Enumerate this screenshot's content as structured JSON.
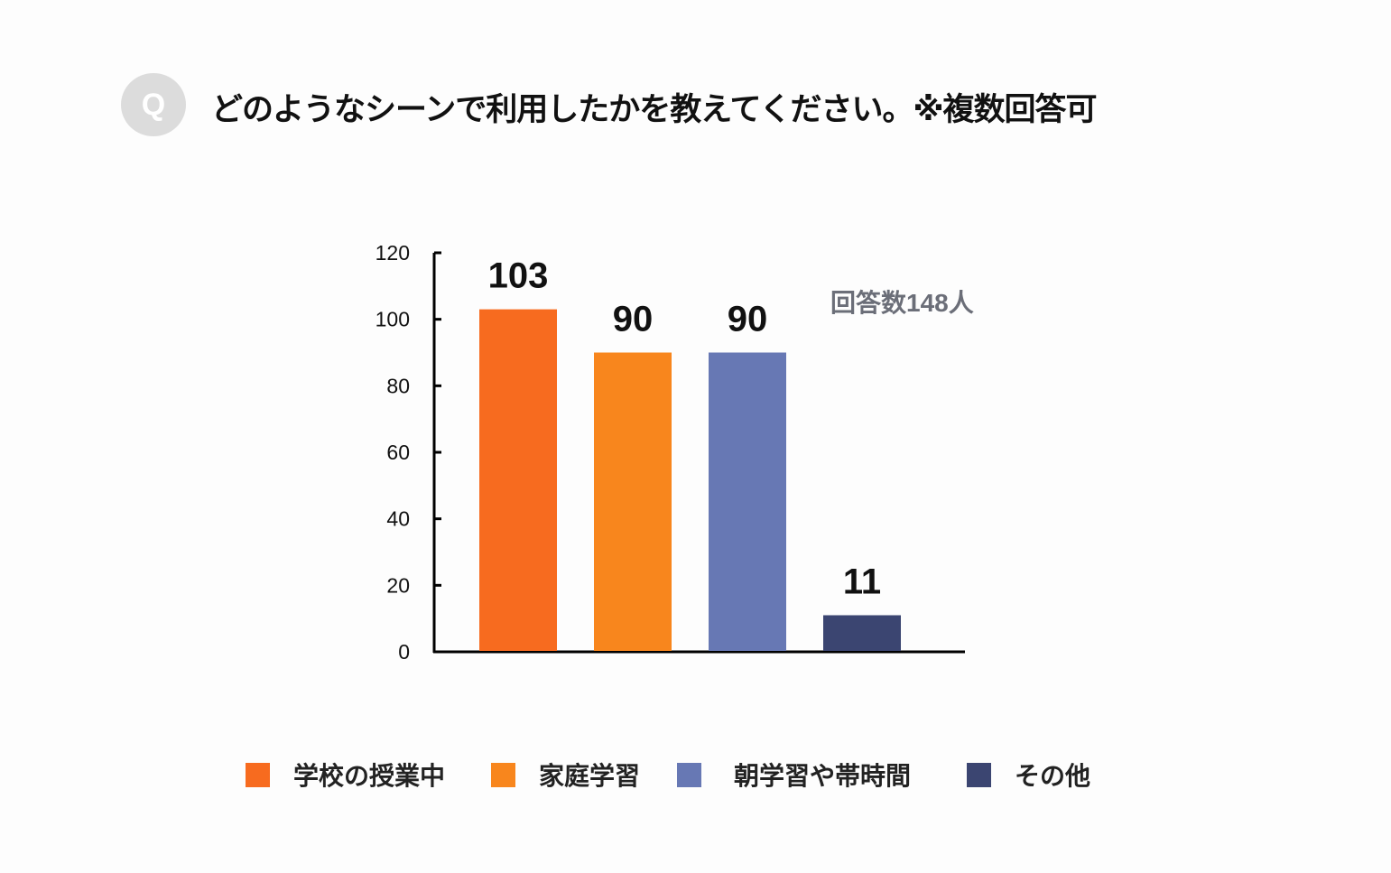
{
  "header": {
    "badge": "Q",
    "title": "どのようなシーンで利用したかを教えてください。※複数回答可"
  },
  "chart_data": {
    "type": "bar",
    "categories": [
      "学校の授業中",
      "家庭学習",
      "朝学習や帯時間",
      "その他"
    ],
    "values": [
      103,
      90,
      90,
      11
    ],
    "colors": [
      "#f76b1f",
      "#f8861d",
      "#6778b4",
      "#3b4571"
    ],
    "ylim": [
      0,
      120
    ],
    "yticks": [
      0,
      20,
      40,
      60,
      80,
      100,
      120
    ],
    "grid": false,
    "legend_position": "bottom",
    "annotation": "回答数148人"
  }
}
